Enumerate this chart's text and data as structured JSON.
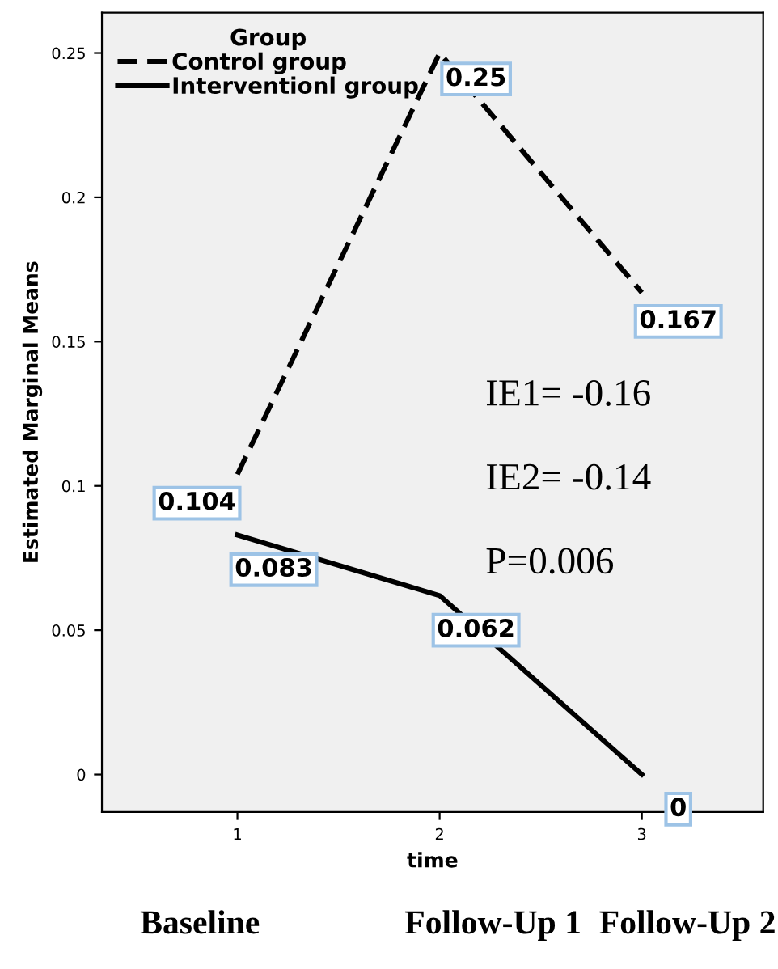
{
  "chart_data": {
    "type": "line",
    "xlabel": "time",
    "ylabel": "Estimated Marginal Means",
    "legend_title": "Group",
    "x": [
      1,
      2,
      3
    ],
    "series": [
      {
        "name": "Control group",
        "color": "#000000",
        "line_style": "dashed",
        "values": [
          0.104,
          0.25,
          0.167
        ]
      },
      {
        "name": "Interventionl group",
        "color": "#000000",
        "line_style": "solid",
        "values": [
          0.083,
          0.062,
          0
        ]
      }
    ],
    "xlim": [
      0.33,
      3.6
    ],
    "xticks": [
      1,
      2,
      3
    ],
    "ylim": [
      -0.013,
      0.264
    ],
    "yticks": [
      0,
      0.05,
      0.1,
      0.15,
      0.2,
      0.25
    ],
    "data_labels": true,
    "grid": false,
    "legend": "top left",
    "marker": "none",
    "annotations": [
      "IE1= -0.16",
      "IE2= -0.14",
      "P=0.006",
      "Baseline",
      "Follow-Up 1",
      "Follow-Up 2"
    ]
  }
}
